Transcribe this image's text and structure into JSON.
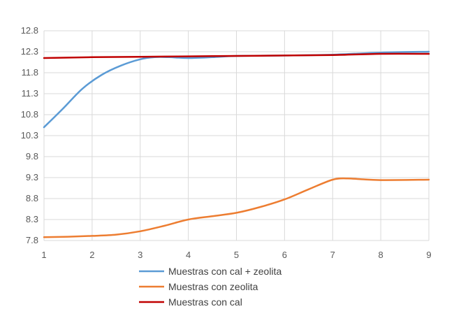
{
  "chart_data": {
    "type": "line",
    "title": "",
    "xlabel": "",
    "ylabel": "",
    "x": [
      1,
      2,
      3,
      4,
      5,
      6,
      7,
      8,
      9
    ],
    "x_ticks": [
      "1",
      "2",
      "3",
      "4",
      "5",
      "6",
      "7",
      "8",
      "9"
    ],
    "y_ticks": [
      "7.8",
      "8.3",
      "8.8",
      "9.3",
      "9.8",
      "10.3",
      "10.8",
      "11.3",
      "11.8",
      "12.3",
      "12.8"
    ],
    "xlim": [
      1,
      9
    ],
    "ylim": [
      7.8,
      12.8
    ],
    "grid": "vertical and horizontal",
    "legend_position": "bottom",
    "series": [
      {
        "name": "Muestras con cal + zeolita",
        "color": "#5b9bd5",
        "points": [
          [
            1,
            10.5
          ],
          [
            1.4,
            10.95
          ],
          [
            1.8,
            11.42
          ],
          [
            2.2,
            11.75
          ],
          [
            2.6,
            11.97
          ],
          [
            3,
            12.12
          ],
          [
            3.3,
            12.17
          ],
          [
            3.6,
            12.17
          ],
          [
            4,
            12.15
          ],
          [
            4.5,
            12.17
          ],
          [
            5,
            12.2
          ],
          [
            6,
            12.21
          ],
          [
            7,
            12.23
          ],
          [
            8,
            12.28
          ],
          [
            9,
            12.3
          ]
        ]
      },
      {
        "name": "Muestras con zeolita",
        "color": "#ed7d31",
        "points": [
          [
            1,
            7.88
          ],
          [
            1.5,
            7.89
          ],
          [
            2,
            7.91
          ],
          [
            2.5,
            7.94
          ],
          [
            3,
            8.02
          ],
          [
            3.5,
            8.15
          ],
          [
            4,
            8.3
          ],
          [
            4.5,
            8.38
          ],
          [
            5,
            8.46
          ],
          [
            5.5,
            8.6
          ],
          [
            6,
            8.78
          ],
          [
            6.5,
            9.02
          ],
          [
            7,
            9.25
          ],
          [
            7.3,
            9.28
          ],
          [
            7.6,
            9.26
          ],
          [
            8,
            9.24
          ],
          [
            9,
            9.25
          ]
        ]
      },
      {
        "name": "Muestras con cal",
        "color": "#c00000",
        "points": [
          [
            1,
            12.15
          ],
          [
            2,
            12.17
          ],
          [
            3,
            12.18
          ],
          [
            4,
            12.19
          ],
          [
            5,
            12.2
          ],
          [
            6,
            12.21
          ],
          [
            7,
            12.22
          ],
          [
            8,
            12.25
          ],
          [
            9,
            12.25
          ]
        ]
      }
    ]
  }
}
